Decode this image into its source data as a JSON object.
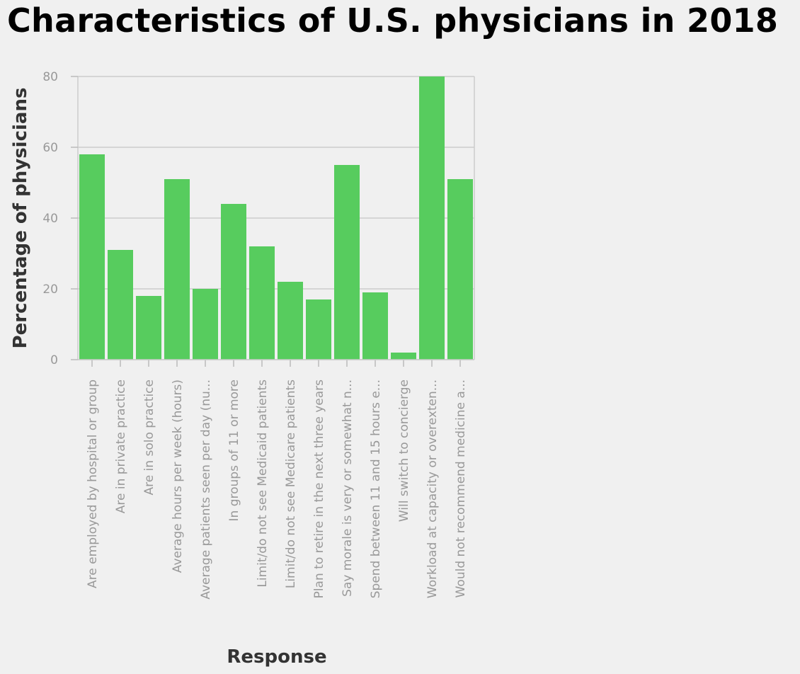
{
  "chart_data": {
    "type": "bar",
    "title": "Characteristics of U.S. physicians in 2018",
    "xlabel": "Response",
    "ylabel": "Percentage of physicians",
    "ylim": [
      0,
      80
    ],
    "yticks": [
      0,
      20,
      40,
      60,
      80
    ],
    "grid": true,
    "bar_color": "#57cc5e",
    "categories": [
      "Are employed by hospital or group",
      "Are in private practice",
      "Are in solo practice",
      "Average hours per week (hours)",
      "Average patients seen per day (nu...",
      "In groups of 11 or more",
      "Limit/do not see Medicaid patients",
      "Limit/do not see Medicare patients",
      "Plan to retire in the next three years",
      "Say morale is very or somewhat n...",
      "Spend between 11 and 15 hours e...",
      "Will switch to concierge",
      "Workload at capacity or overexten...",
      "Would not recommend medicine a..."
    ],
    "values": [
      58,
      31,
      18,
      51,
      20,
      44,
      32,
      22,
      17,
      55,
      19,
      2,
      80,
      51
    ]
  }
}
